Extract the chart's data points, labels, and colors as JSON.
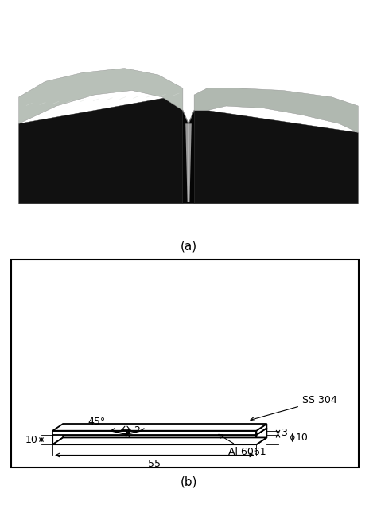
{
  "caption_a": "(a)",
  "caption_b": "(b)",
  "photo_bg": "#7a0000",
  "label_SS304": "SS 304",
  "label_Al6061": "Al 6061",
  "dim_angle": "45°",
  "dim_notch_depth": "2",
  "dim_ss_thickness": "3",
  "dim_total_height": "10",
  "dim_width": "10",
  "dim_length": "55",
  "metal_dark": "#1a1a1a",
  "metal_mid": "#4a4a4a",
  "metal_light": "#aaaaaa",
  "metal_bright": "#cccccc",
  "metal_shiny": "#e0e0e0",
  "notch_v_color": "#888888"
}
